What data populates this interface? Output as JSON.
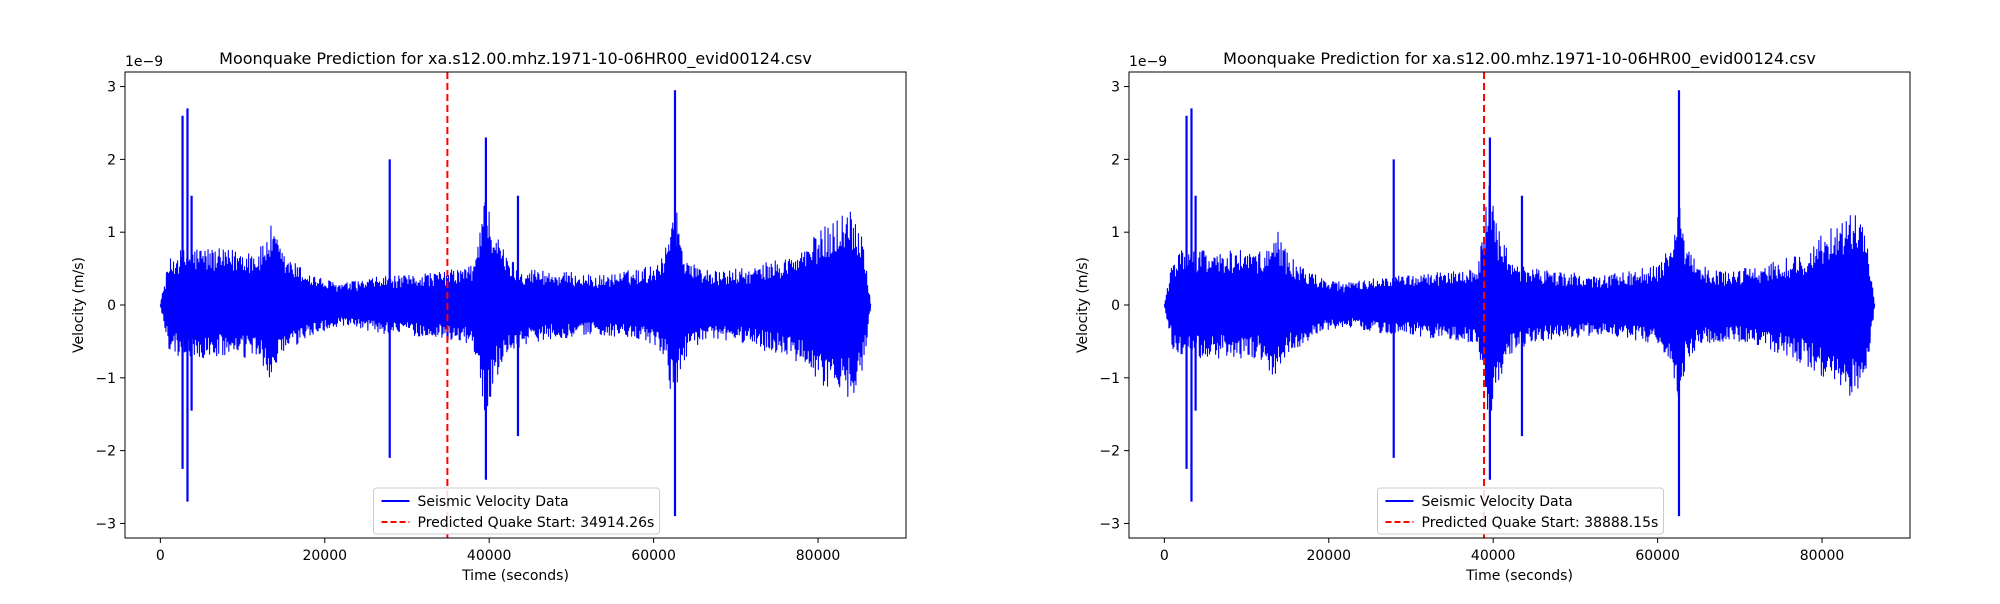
{
  "chart_data": [
    {
      "type": "line",
      "title": "Moonquake Prediction for xa.s12.00.mhz.1971-10-06HR00_evid00124.csv",
      "xlabel": "Time (seconds)",
      "ylabel": "Velocity (m/s)",
      "y_scale_label": "1e−9",
      "xlim": [
        -4300,
        90700
      ],
      "ylim": [
        -3.2,
        3.2
      ],
      "xticks": [
        0,
        20000,
        40000,
        60000,
        80000
      ],
      "xtick_labels": [
        "0",
        "20000",
        "40000",
        "60000",
        "80000"
      ],
      "yticks": [
        -3,
        -2,
        -1,
        0,
        1,
        2,
        3
      ],
      "ytick_labels": [
        "−3",
        "−2",
        "−1",
        "0",
        "1",
        "2",
        "3"
      ],
      "grid": false,
      "legend_position": "lower-center",
      "series": [
        {
          "name": "Seismic Velocity Data",
          "color": "#0000ff",
          "style": "solid",
          "envelope_time": [
            0,
            1000,
            2000,
            4000,
            6000,
            8000,
            10000,
            12000,
            13500,
            15000,
            18000,
            20000,
            22000,
            25000,
            27000,
            30000,
            32000,
            34000,
            36000,
            38000,
            38500,
            39500,
            40500,
            42000,
            44000,
            46000,
            48000,
            50000,
            53000,
            56000,
            58000,
            60000,
            61500,
            62500,
            63500,
            65000,
            68000,
            70000,
            72000,
            74000,
            76000,
            78000,
            80000,
            82000,
            84000,
            85500,
            86400
          ],
          "envelope_upper": [
            0.02,
            0.6,
            0.75,
            0.8,
            0.8,
            0.75,
            0.8,
            0.75,
            1.1,
            0.7,
            0.45,
            0.35,
            0.3,
            0.35,
            0.4,
            0.4,
            0.45,
            0.45,
            0.5,
            0.55,
            0.8,
            1.8,
            1.1,
            0.7,
            0.5,
            0.5,
            0.45,
            0.45,
            0.4,
            0.45,
            0.5,
            0.55,
            0.8,
            1.6,
            0.8,
            0.55,
            0.45,
            0.5,
            0.5,
            0.6,
            0.65,
            0.75,
            1.0,
            1.2,
            1.35,
            1.0,
            0.02
          ],
          "envelope_lower": [
            -0.02,
            -0.6,
            -0.7,
            -0.75,
            -0.75,
            -0.7,
            -0.75,
            -0.75,
            -1.05,
            -0.7,
            -0.45,
            -0.35,
            -0.3,
            -0.35,
            -0.4,
            -0.4,
            -0.45,
            -0.45,
            -0.5,
            -0.55,
            -0.8,
            -1.7,
            -1.1,
            -0.7,
            -0.55,
            -0.5,
            -0.45,
            -0.45,
            -0.4,
            -0.45,
            -0.5,
            -0.55,
            -0.8,
            -1.5,
            -0.8,
            -0.55,
            -0.5,
            -0.5,
            -0.55,
            -0.65,
            -0.7,
            -0.85,
            -1.05,
            -1.25,
            -1.3,
            -0.9,
            -0.02
          ],
          "spikes": [
            {
              "x": 2700,
              "max": 2.6,
              "min": -2.25
            },
            {
              "x": 3300,
              "max": 2.7,
              "min": -2.7
            },
            {
              "x": 3800,
              "max": 1.5,
              "min": -1.45
            },
            {
              "x": 27900,
              "max": 2.0,
              "min": -2.1
            },
            {
              "x": 39600,
              "max": 2.3,
              "min": -2.4
            },
            {
              "x": 43500,
              "max": 1.5,
              "min": -1.8
            },
            {
              "x": 62600,
              "max": 2.95,
              "min": -2.9
            }
          ]
        },
        {
          "name": "Predicted Quake Start: 34914.26s",
          "color": "#ff0000",
          "style": "dashed",
          "x": 34914.26
        }
      ]
    },
    {
      "type": "line",
      "title": "Moonquake Prediction for xa.s12.00.mhz.1971-10-06HR00_evid00124.csv",
      "xlabel": "Time (seconds)",
      "ylabel": "Velocity (m/s)",
      "y_scale_label": "1e−9",
      "xlim": [
        -4300,
        90700
      ],
      "ylim": [
        -3.2,
        3.2
      ],
      "xticks": [
        0,
        20000,
        40000,
        60000,
        80000
      ],
      "xtick_labels": [
        "0",
        "20000",
        "40000",
        "60000",
        "80000"
      ],
      "yticks": [
        -3,
        -2,
        -1,
        0,
        1,
        2,
        3
      ],
      "ytick_labels": [
        "−3",
        "−2",
        "−1",
        "0",
        "1",
        "2",
        "3"
      ],
      "grid": false,
      "legend_position": "lower-center",
      "series": [
        {
          "name": "Seismic Velocity Data",
          "color": "#0000ff",
          "style": "solid",
          "envelope_time": [
            0,
            1000,
            2000,
            4000,
            6000,
            8000,
            10000,
            12000,
            13500,
            15000,
            18000,
            20000,
            22000,
            25000,
            27000,
            30000,
            32000,
            34000,
            36000,
            38000,
            38500,
            39500,
            40500,
            42000,
            44000,
            46000,
            48000,
            50000,
            53000,
            56000,
            58000,
            60000,
            61500,
            62500,
            63500,
            65000,
            68000,
            70000,
            72000,
            74000,
            76000,
            78000,
            80000,
            82000,
            84000,
            85500,
            86400
          ],
          "envelope_upper": [
            0.02,
            0.6,
            0.75,
            0.8,
            0.8,
            0.75,
            0.8,
            0.75,
            1.1,
            0.7,
            0.45,
            0.35,
            0.3,
            0.35,
            0.4,
            0.4,
            0.45,
            0.45,
            0.5,
            0.55,
            0.8,
            1.8,
            1.1,
            0.7,
            0.5,
            0.5,
            0.45,
            0.45,
            0.4,
            0.45,
            0.5,
            0.55,
            0.8,
            1.6,
            0.8,
            0.55,
            0.45,
            0.5,
            0.5,
            0.6,
            0.65,
            0.75,
            1.0,
            1.2,
            1.35,
            1.0,
            0.02
          ],
          "envelope_lower": [
            -0.02,
            -0.6,
            -0.7,
            -0.75,
            -0.75,
            -0.7,
            -0.75,
            -0.75,
            -1.05,
            -0.7,
            -0.45,
            -0.35,
            -0.3,
            -0.35,
            -0.4,
            -0.4,
            -0.45,
            -0.45,
            -0.5,
            -0.55,
            -0.8,
            -1.7,
            -1.1,
            -0.7,
            -0.55,
            -0.5,
            -0.45,
            -0.45,
            -0.4,
            -0.45,
            -0.5,
            -0.55,
            -0.8,
            -1.5,
            -0.8,
            -0.55,
            -0.5,
            -0.5,
            -0.55,
            -0.65,
            -0.7,
            -0.85,
            -1.05,
            -1.25,
            -1.3,
            -0.9,
            -0.02
          ],
          "spikes": [
            {
              "x": 2700,
              "max": 2.6,
              "min": -2.25
            },
            {
              "x": 3300,
              "max": 2.7,
              "min": -2.7
            },
            {
              "x": 3800,
              "max": 1.5,
              "min": -1.45
            },
            {
              "x": 27900,
              "max": 2.0,
              "min": -2.1
            },
            {
              "x": 39600,
              "max": 2.3,
              "min": -2.4
            },
            {
              "x": 43500,
              "max": 1.5,
              "min": -1.8
            },
            {
              "x": 62600,
              "max": 2.95,
              "min": -2.9
            }
          ]
        },
        {
          "name": "Predicted Quake Start: 38888.15s",
          "color": "#ff0000",
          "style": "dashed",
          "x": 38888.15
        }
      ]
    }
  ]
}
